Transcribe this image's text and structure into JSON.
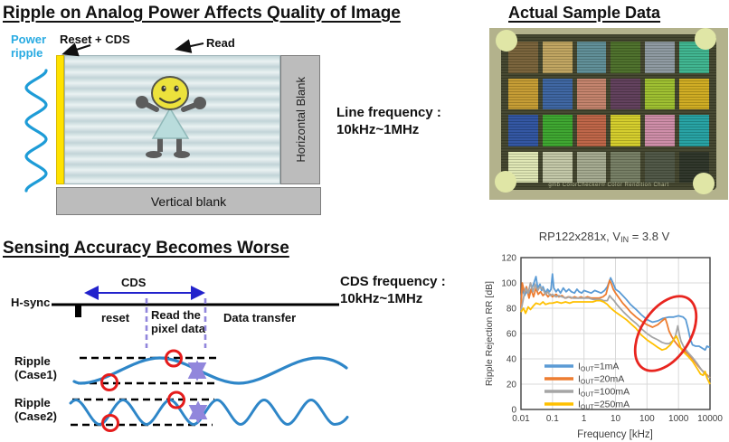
{
  "colors": {
    "accent_cyan": "#29abe2",
    "wave_blue": "#2e86c8",
    "marker_red": "#e51c1c",
    "dash_purple": "#9186dc",
    "cds_arrow_blue": "#2222cc",
    "yellow_bar": "#ffe200",
    "blank_gray": "#bcbcbc"
  },
  "top_left": {
    "title": "Ripple on Analog Power Affects Quality of Image",
    "power_ripple_line1": "Power",
    "power_ripple_line2": "ripple",
    "reset_cds_label": "Reset + CDS",
    "read_label": "Read",
    "horizontal_blank_label": "Horizontal Blank",
    "vertical_blank_label": "Vertical blank",
    "line_frequency_label": "Line frequency :",
    "line_frequency_value": "10kHz~1MHz"
  },
  "top_right": {
    "title": "Actual Sample Data",
    "color_checker": {
      "caption_logo": "gmb",
      "caption": "ColorChecker® Color Rendition Chart",
      "rows": [
        [
          "#776038",
          "#bfa35e",
          "#5d8c96",
          "#4a6d28",
          "#8c98a0",
          "#3cb48e"
        ],
        [
          "#c49a30",
          "#3a62a0",
          "#c28069",
          "#5e3c59",
          "#9cbe2c",
          "#ceaa1e"
        ],
        [
          "#2d52a0",
          "#3aa42c",
          "#bd6244",
          "#d4cc28",
          "#cd8aa6",
          "#22a0a2"
        ],
        [
          "#dfe6b4",
          "#c2c6a6",
          "#a3a88e",
          "#747c62",
          "#4c5443",
          "#2b3226"
        ]
      ]
    }
  },
  "bottom_left": {
    "title": "Sensing Accuracy Becomes Worse",
    "hsync_label": "H-sync",
    "cds_label": "CDS",
    "reset_label": "reset",
    "read_pixel_line1": "Read the",
    "read_pixel_line2": "pixel data",
    "data_transfer_label": "Data transfer",
    "cds_frequency_label": "CDS frequency :",
    "cds_frequency_value": "10kHz~1MHz",
    "ripple_case1_line1": "Ripple",
    "ripple_case1_line2": "(Case1)",
    "ripple_case2_line1": "Ripple",
    "ripple_case2_line2": "(Case2)"
  },
  "chart_data": {
    "type": "line",
    "title": {
      "prefix": "RP122x281x, V",
      "sub": "IN",
      "suffix": " = 3.8 V"
    },
    "xlabel": "Frequency [kHz]",
    "ylabel": "Ripple Rejection RR [dB]",
    "x_scale": "log",
    "xlim": [
      0.01,
      10000
    ],
    "ylim": [
      0,
      120
    ],
    "x_ticks": [
      "0.01",
      "0.1",
      "1",
      "10",
      "100",
      "1000",
      "10000"
    ],
    "y_ticks": [
      0,
      20,
      40,
      60,
      80,
      100,
      120
    ],
    "grid": true,
    "legend_position": "inside-bottom-left",
    "annotation": "red ellipse highlighting RR drop between ~100 kHz and ~3 MHz",
    "annotation_color": "#e8251f",
    "series": [
      {
        "label_base": "I",
        "label_sub": "OUT",
        "label_rest": "=1mA",
        "color": "#5b9bd5",
        "points": [
          [
            0.01,
            87
          ],
          [
            0.011,
            95
          ],
          [
            0.013,
            90
          ],
          [
            0.015,
            93
          ],
          [
            0.018,
            91
          ],
          [
            0.02,
            94
          ],
          [
            0.025,
            99
          ],
          [
            0.03,
            105
          ],
          [
            0.034,
            96
          ],
          [
            0.04,
            99
          ],
          [
            0.045,
            94
          ],
          [
            0.05,
            97
          ],
          [
            0.06,
            92
          ],
          [
            0.07,
            95
          ],
          [
            0.08,
            93
          ],
          [
            0.09,
            95
          ],
          [
            0.1,
            107
          ],
          [
            0.11,
            96
          ],
          [
            0.13,
            93
          ],
          [
            0.15,
            95
          ],
          [
            0.18,
            92
          ],
          [
            0.22,
            96
          ],
          [
            0.27,
            93
          ],
          [
            0.33,
            95
          ],
          [
            0.4,
            93
          ],
          [
            0.5,
            92
          ],
          [
            0.6,
            95
          ],
          [
            0.7,
            93
          ],
          [
            0.85,
            92
          ],
          [
            1,
            94
          ],
          [
            1.3,
            93
          ],
          [
            1.7,
            92
          ],
          [
            2.2,
            94
          ],
          [
            2.8,
            93
          ],
          [
            3.5,
            92
          ],
          [
            4.5,
            94
          ],
          [
            5.5,
            97
          ],
          [
            7,
            104
          ],
          [
            8,
            101
          ],
          [
            9,
            98
          ],
          [
            10,
            95
          ],
          [
            13,
            93
          ],
          [
            17,
            90
          ],
          [
            22,
            87
          ],
          [
            30,
            83
          ],
          [
            45,
            79
          ],
          [
            65,
            75
          ],
          [
            100,
            71
          ],
          [
            150,
            69
          ],
          [
            220,
            70
          ],
          [
            320,
            72
          ],
          [
            500,
            73
          ],
          [
            700,
            73
          ],
          [
            1000,
            74
          ],
          [
            1400,
            73
          ],
          [
            1700,
            71
          ],
          [
            2000,
            64
          ],
          [
            2400,
            55
          ],
          [
            2800,
            51
          ],
          [
            3500,
            50
          ],
          [
            4500,
            50
          ],
          [
            6000,
            48
          ],
          [
            7000,
            47
          ],
          [
            8000,
            50
          ],
          [
            10000,
            49
          ]
        ]
      },
      {
        "label_base": "I",
        "label_sub": "OUT",
        "label_rest": "=20mA",
        "color": "#ed7d31",
        "points": [
          [
            0.01,
            80
          ],
          [
            0.011,
            100
          ],
          [
            0.013,
            92
          ],
          [
            0.015,
            97
          ],
          [
            0.018,
            88
          ],
          [
            0.021,
            95
          ],
          [
            0.025,
            89
          ],
          [
            0.03,
            96
          ],
          [
            0.035,
            91
          ],
          [
            0.042,
            93
          ],
          [
            0.05,
            90
          ],
          [
            0.06,
            92
          ],
          [
            0.072,
            89
          ],
          [
            0.085,
            91
          ],
          [
            0.1,
            89
          ],
          [
            0.13,
            91
          ],
          [
            0.16,
            89
          ],
          [
            0.2,
            90
          ],
          [
            0.25,
            88
          ],
          [
            0.32,
            89
          ],
          [
            0.4,
            88
          ],
          [
            0.5,
            89
          ],
          [
            0.65,
            88
          ],
          [
            0.8,
            89
          ],
          [
            1,
            88
          ],
          [
            1.3,
            89
          ],
          [
            1.7,
            88
          ],
          [
            2.2,
            88
          ],
          [
            3,
            88
          ],
          [
            4,
            89
          ],
          [
            5,
            91
          ],
          [
            6.5,
            102
          ],
          [
            7.5,
            99
          ],
          [
            8.5,
            95
          ],
          [
            10,
            92
          ],
          [
            13,
            88
          ],
          [
            17,
            84
          ],
          [
            22,
            81
          ],
          [
            30,
            77
          ],
          [
            45,
            73
          ],
          [
            65,
            70
          ],
          [
            100,
            67
          ],
          [
            150,
            65
          ],
          [
            220,
            67
          ],
          [
            300,
            70
          ],
          [
            380,
            72
          ],
          [
            430,
            68
          ],
          [
            500,
            62
          ],
          [
            600,
            58
          ],
          [
            750,
            54
          ],
          [
            1000,
            50
          ],
          [
            1400,
            47
          ],
          [
            2000,
            44
          ],
          [
            2800,
            40
          ],
          [
            4000,
            35
          ],
          [
            5500,
            31
          ],
          [
            7500,
            28
          ],
          [
            10000,
            25
          ]
        ]
      },
      {
        "label_base": "I",
        "label_sub": "OUT",
        "label_rest": "=100mA",
        "color": "#a5a5a5",
        "points": [
          [
            0.01,
            78
          ],
          [
            0.012,
            88
          ],
          [
            0.014,
            96
          ],
          [
            0.017,
            92
          ],
          [
            0.02,
            100
          ],
          [
            0.024,
            93
          ],
          [
            0.028,
            99
          ],
          [
            0.034,
            94
          ],
          [
            0.04,
            97
          ],
          [
            0.05,
            95
          ],
          [
            0.06,
            91
          ],
          [
            0.07,
            93
          ],
          [
            0.085,
            90
          ],
          [
            0.1,
            91
          ],
          [
            0.13,
            89
          ],
          [
            0.16,
            90
          ],
          [
            0.2,
            89
          ],
          [
            0.27,
            88
          ],
          [
            0.35,
            89
          ],
          [
            0.45,
            88
          ],
          [
            0.6,
            88
          ],
          [
            0.8,
            88
          ],
          [
            1,
            88
          ],
          [
            1.4,
            88
          ],
          [
            1.9,
            87
          ],
          [
            2.5,
            87
          ],
          [
            3.3,
            87
          ],
          [
            4.2,
            86
          ],
          [
            5.5,
            86
          ],
          [
            6.5,
            90
          ],
          [
            7.5,
            88
          ],
          [
            9,
            86
          ],
          [
            11,
            83
          ],
          [
            14,
            80
          ],
          [
            18,
            77
          ],
          [
            24,
            74
          ],
          [
            32,
            71
          ],
          [
            45,
            68
          ],
          [
            65,
            64
          ],
          [
            100,
            60
          ],
          [
            150,
            57
          ],
          [
            220,
            55
          ],
          [
            300,
            53
          ],
          [
            400,
            52
          ],
          [
            500,
            52
          ],
          [
            650,
            54
          ],
          [
            800,
            58
          ],
          [
            950,
            66
          ],
          [
            1050,
            60
          ],
          [
            1200,
            54
          ],
          [
            1500,
            49
          ],
          [
            2000,
            45
          ],
          [
            2800,
            41
          ],
          [
            4000,
            36
          ],
          [
            5500,
            31
          ],
          [
            7500,
            27
          ],
          [
            10000,
            25
          ]
        ]
      },
      {
        "label_base": "I",
        "label_sub": "OUT",
        "label_rest": "=250mA",
        "color": "#ffc000",
        "points": [
          [
            0.01,
            77
          ],
          [
            0.012,
            80
          ],
          [
            0.014,
            76
          ],
          [
            0.017,
            81
          ],
          [
            0.02,
            79
          ],
          [
            0.025,
            82
          ],
          [
            0.03,
            84
          ],
          [
            0.04,
            83
          ],
          [
            0.05,
            85
          ],
          [
            0.06,
            83
          ],
          [
            0.08,
            84
          ],
          [
            0.1,
            84
          ],
          [
            0.14,
            85
          ],
          [
            0.19,
            84
          ],
          [
            0.26,
            85
          ],
          [
            0.35,
            84
          ],
          [
            0.45,
            85
          ],
          [
            0.6,
            85
          ],
          [
            0.8,
            85
          ],
          [
            1,
            85
          ],
          [
            1.4,
            85
          ],
          [
            1.9,
            85
          ],
          [
            2.5,
            86
          ],
          [
            3.3,
            86
          ],
          [
            4.2,
            85
          ],
          [
            5.5,
            83
          ],
          [
            6.5,
            81
          ],
          [
            8,
            79
          ],
          [
            10,
            77
          ],
          [
            13,
            75
          ],
          [
            17,
            73
          ],
          [
            22,
            71
          ],
          [
            30,
            68
          ],
          [
            45,
            64
          ],
          [
            65,
            59
          ],
          [
            100,
            55
          ],
          [
            150,
            52
          ],
          [
            220,
            49
          ],
          [
            300,
            47
          ],
          [
            400,
            48
          ],
          [
            550,
            51
          ],
          [
            700,
            55
          ],
          [
            850,
            58
          ],
          [
            1000,
            54
          ],
          [
            1200,
            48
          ],
          [
            1500,
            45
          ],
          [
            2000,
            42
          ],
          [
            2800,
            38
          ],
          [
            4000,
            32
          ],
          [
            5000,
            28
          ],
          [
            6000,
            27
          ],
          [
            7000,
            30
          ],
          [
            8000,
            25
          ],
          [
            10000,
            20
          ]
        ]
      }
    ]
  }
}
